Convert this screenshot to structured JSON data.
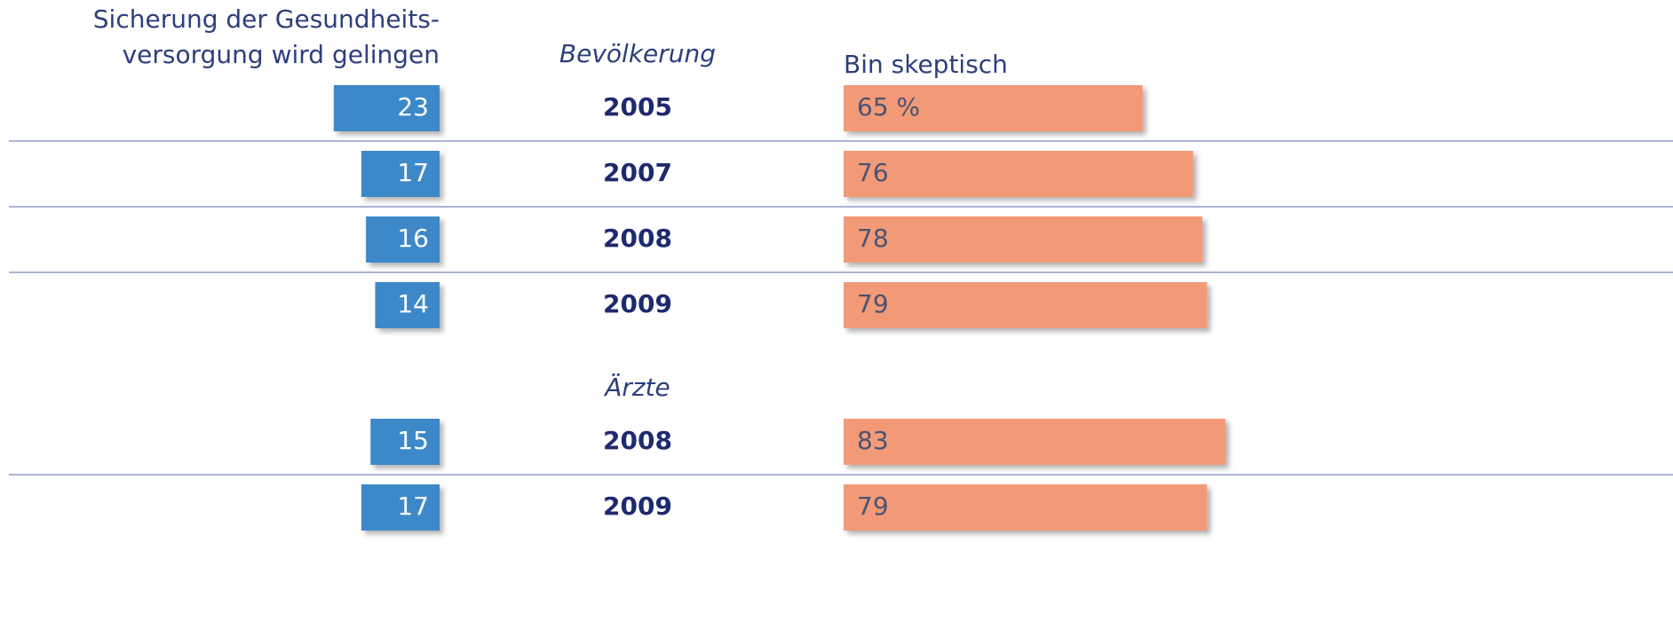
{
  "chart_data": {
    "type": "diverging-bar",
    "series": [
      {
        "name": "Sicherung der Gesundheits-\nversorgung wird gelingen",
        "color": "#3e88c9"
      },
      {
        "name": "Bin skeptisch",
        "color": "#f29a78"
      }
    ],
    "groups": [
      {
        "name": "Bevölkerung",
        "categories": [
          "2005",
          "2007",
          "2008",
          "2009"
        ],
        "series": [
          {
            "values": [
              23,
              17,
              16,
              14
            ]
          },
          {
            "values": [
              65,
              76,
              78,
              79
            ],
            "value_labels": [
              "65 %",
              "76",
              "78",
              "79"
            ]
          }
        ]
      },
      {
        "name": "Ärzte",
        "categories": [
          "2008",
          "2009"
        ],
        "series": [
          {
            "values": [
              15,
              17
            ]
          },
          {
            "values": [
              83,
              79
            ]
          }
        ]
      }
    ]
  }
}
